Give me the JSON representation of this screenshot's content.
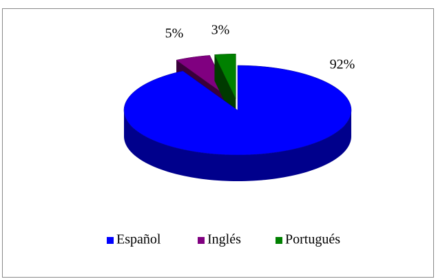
{
  "chart_data": {
    "type": "pie3d",
    "categories": [
      "Español",
      "Inglés",
      "Portugués"
    ],
    "values": [
      92,
      5,
      3
    ],
    "value_labels": [
      "92%",
      "5%",
      "3%"
    ],
    "colors": [
      "#0000ff",
      "#800080",
      "#008000"
    ],
    "legend": "bottom"
  }
}
